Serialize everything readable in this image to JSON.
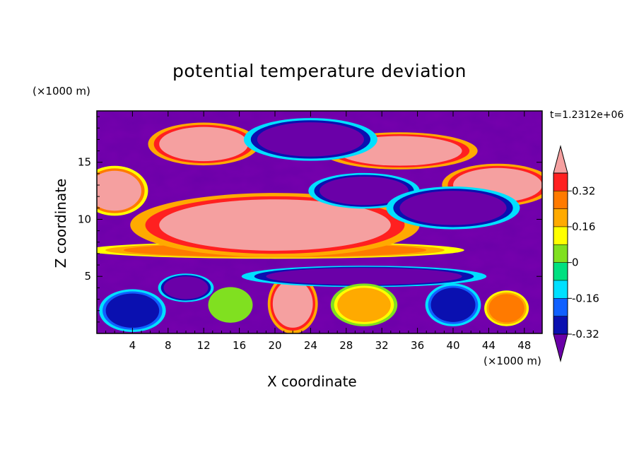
{
  "chart_data": {
    "type": "heatmap",
    "title": "potential temperature deviation",
    "xlabel": "X coordinate",
    "ylabel": "Z coordinate",
    "x_unit": "(×1000 m)",
    "y_unit": "(×1000 m)",
    "time_label": "t=1.2312e+06",
    "xlim": [
      0,
      50
    ],
    "ylim": [
      0,
      19.5
    ],
    "x_ticks": [
      4,
      8,
      12,
      16,
      20,
      24,
      28,
      32,
      36,
      40,
      44,
      48
    ],
    "y_ticks": [
      5,
      10,
      15
    ],
    "colorbar": {
      "labels": [
        "0.32",
        "0.16",
        "0",
        "-0.16",
        "-0.32"
      ],
      "label_values": [
        0.32,
        0.16,
        0,
        -0.16,
        -0.32
      ],
      "levels": [
        0.4,
        0.32,
        0.24,
        0.16,
        0.08,
        0,
        -0.08,
        -0.16,
        -0.24,
        -0.32,
        -0.4
      ],
      "colors": [
        "#f5a0a0",
        "#ff2020",
        "#ff7a00",
        "#ffaa00",
        "#ffff00",
        "#80e020",
        "#00e080",
        "#00e0ff",
        "#1060ff",
        "#0a10b0",
        "#6a00a8"
      ],
      "extend": "both"
    },
    "features": [
      {
        "x": 20,
        "z": 7.3,
        "w": 34,
        "h": 1.2,
        "v": 0.3
      },
      {
        "x": 20,
        "z": 9.5,
        "w": 26,
        "h": 4.5,
        "v": 0.5
      },
      {
        "x": 34,
        "z": 16.0,
        "w": 14,
        "h": 2.6,
        "v": 0.5
      },
      {
        "x": 12,
        "z": 16.6,
        "w": 10,
        "h": 3.0,
        "v": 0.5
      },
      {
        "x": 45,
        "z": 13.0,
        "w": 10,
        "h": 3.0,
        "v": 0.5
      },
      {
        "x": 22,
        "z": 2.6,
        "w": 4.5,
        "h": 4.2,
        "v": 0.5
      },
      {
        "x": 2,
        "z": 12.5,
        "w": 6,
        "h": 3.5,
        "v": 0.45
      },
      {
        "x": 10,
        "z": 4.0,
        "w": 5,
        "h": 2.0,
        "v": -0.35
      },
      {
        "x": 30,
        "z": 12.5,
        "w": 10,
        "h": 2.5,
        "v": -0.45
      },
      {
        "x": 40,
        "z": 11.0,
        "w": 12,
        "h": 3.0,
        "v": -0.45
      },
      {
        "x": 24,
        "z": 17.0,
        "w": 12,
        "h": 3.0,
        "v": -0.45
      },
      {
        "x": 30,
        "z": 5.0,
        "w": 22,
        "h": 1.5,
        "v": -0.45
      },
      {
        "x": 4,
        "z": 2.0,
        "w": 6,
        "h": 3.0,
        "v": -0.3
      },
      {
        "x": 30,
        "z": 2.5,
        "w": 6,
        "h": 3.0,
        "v": 0.22
      },
      {
        "x": 40,
        "z": 2.5,
        "w": 5,
        "h": 3.0,
        "v": -0.3
      },
      {
        "x": 46,
        "z": 2.2,
        "w": 4,
        "h": 2.5,
        "v": 0.28
      },
      {
        "x": 15,
        "z": 2.5,
        "w": 4,
        "h": 2.5,
        "v": 0.05
      }
    ]
  }
}
